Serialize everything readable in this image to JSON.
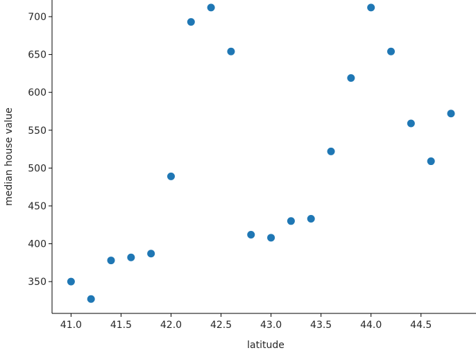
{
  "chart_data": {
    "type": "scatter",
    "xlabel": "latitude",
    "ylabel": "median house value",
    "x": [
      41.0,
      41.2,
      41.4,
      41.6,
      41.8,
      42.0,
      42.2,
      42.4,
      42.6,
      42.8,
      43.0,
      43.2,
      43.4,
      43.6,
      43.8,
      44.0,
      44.2,
      44.4,
      44.6,
      44.8
    ],
    "y": [
      350,
      327,
      378,
      382,
      387,
      489,
      693,
      712,
      654,
      412,
      408,
      430,
      433,
      522,
      619,
      712,
      654,
      559,
      509,
      572
    ],
    "xlim": [
      40.81,
      45.05
    ],
    "ylim": [
      308,
      722
    ],
    "xticks": [
      "41.0",
      "41.5",
      "42.0",
      "42.5",
      "43.0",
      "43.5",
      "44.0",
      "44.5"
    ],
    "yticks": [
      "350",
      "400",
      "450",
      "500",
      "550",
      "600",
      "650",
      "700"
    ],
    "grid": false,
    "color": "#1f77b4"
  }
}
